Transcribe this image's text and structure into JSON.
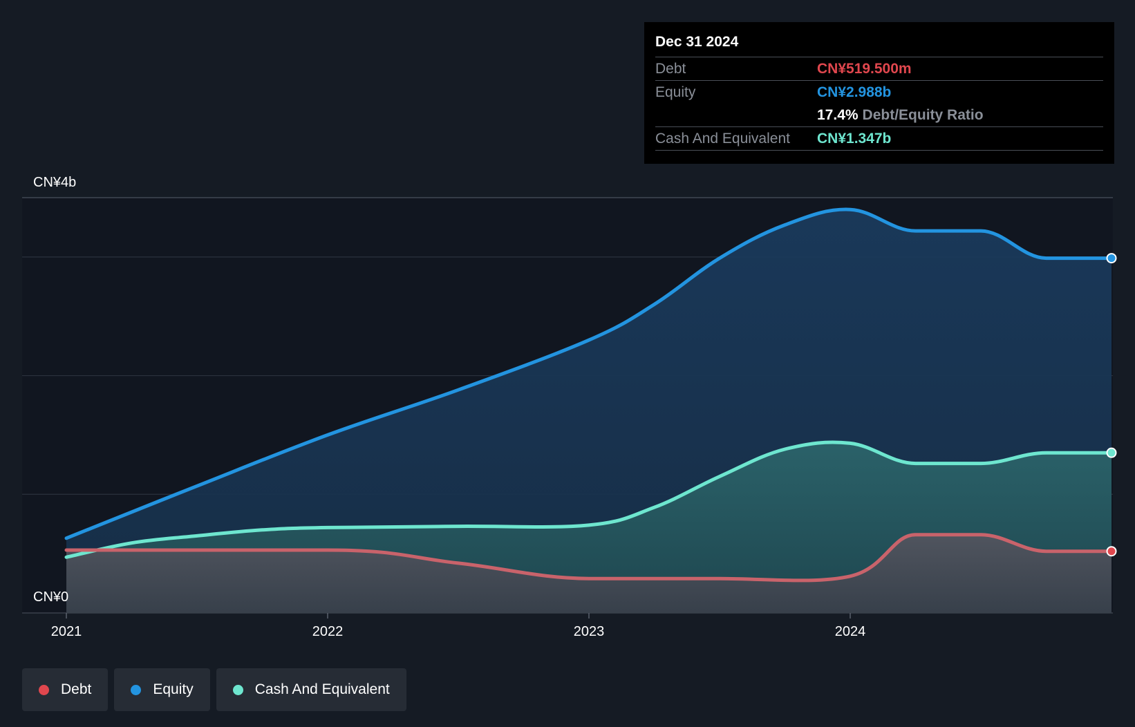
{
  "chart_data": {
    "type": "area",
    "title": "",
    "xlabel": "",
    "ylabel": "",
    "y_axis_labels": {
      "top": "CN¥4b",
      "bottom": "CN¥0"
    },
    "ylim": [
      0,
      3.5
    ],
    "xlim": [
      2021.0,
      2025.0
    ],
    "x_ticks": [
      {
        "value": 2021,
        "label": "2021"
      },
      {
        "value": 2022,
        "label": "2022"
      },
      {
        "value": 2023,
        "label": "2023"
      },
      {
        "value": 2024,
        "label": "2024"
      }
    ],
    "series": [
      {
        "name": "Equity",
        "color": "#2394e0",
        "points": [
          [
            2021.0,
            0.63
          ],
          [
            2021.5,
            1.07
          ],
          [
            2022.0,
            1.5
          ],
          [
            2022.5,
            1.88
          ],
          [
            2023.0,
            2.3
          ],
          [
            2023.25,
            2.6
          ],
          [
            2023.5,
            2.99
          ],
          [
            2023.75,
            3.27
          ],
          [
            2024.0,
            3.4
          ],
          [
            2024.25,
            3.22
          ],
          [
            2024.5,
            3.22
          ],
          [
            2024.75,
            2.99
          ],
          [
            2025.0,
            2.99
          ]
        ]
      },
      {
        "name": "Cash And Equivalent",
        "color": "#6ee6cf",
        "points": [
          [
            2021.0,
            0.47
          ],
          [
            2021.25,
            0.59
          ],
          [
            2021.5,
            0.65
          ],
          [
            2021.75,
            0.7
          ],
          [
            2022.0,
            0.72
          ],
          [
            2022.5,
            0.73
          ],
          [
            2023.0,
            0.74
          ],
          [
            2023.25,
            0.89
          ],
          [
            2023.5,
            1.15
          ],
          [
            2023.75,
            1.38
          ],
          [
            2024.0,
            1.43
          ],
          [
            2024.25,
            1.26
          ],
          [
            2024.5,
            1.26
          ],
          [
            2024.75,
            1.35
          ],
          [
            2025.0,
            1.35
          ]
        ]
      },
      {
        "name": "Debt",
        "color": "#e0474e",
        "line_color": "#c9636b",
        "points": [
          [
            2021.0,
            0.53
          ],
          [
            2022.0,
            0.53
          ],
          [
            2022.5,
            0.42
          ],
          [
            2023.0,
            0.29
          ],
          [
            2023.5,
            0.29
          ],
          [
            2024.0,
            0.31
          ],
          [
            2024.25,
            0.66
          ],
          [
            2024.5,
            0.66
          ],
          [
            2024.75,
            0.52
          ],
          [
            2025.0,
            0.52
          ]
        ]
      }
    ],
    "legend_position": "bottom-left"
  },
  "tooltip": {
    "date": "Dec 31 2024",
    "debt_label": "Debt",
    "debt_value": "CN¥519.500m",
    "equity_label": "Equity",
    "equity_value": "CN¥2.988b",
    "ratio_value": "17.4%",
    "ratio_label": "Debt/Equity Ratio",
    "cash_label": "Cash And Equivalent",
    "cash_value": "CN¥1.347b",
    "colors": {
      "debt": "#e0474e",
      "equity": "#2394e0",
      "cash": "#6ee6cf"
    }
  },
  "legend": {
    "items": [
      {
        "label": "Debt",
        "color": "#e0474e"
      },
      {
        "label": "Equity",
        "color": "#2394e0"
      },
      {
        "label": "Cash And Equivalent",
        "color": "#6ee6cf"
      }
    ]
  }
}
